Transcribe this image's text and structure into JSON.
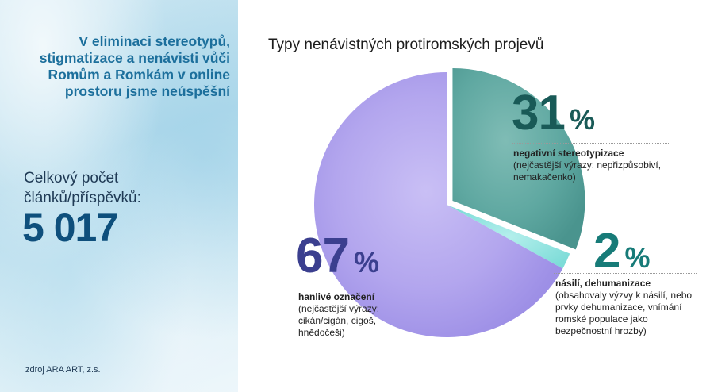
{
  "sidebar": {
    "headline": "V eliminaci stereotypů, stigmatizace a nenávisti vůči Romům a Romkám v online prostoru jsme neúspěšní",
    "count_label": "Celkový počet článků/příspěvků:",
    "count_value": "5 017",
    "source": "zdroj ARA ART, z.s."
  },
  "colors": {
    "sidebar_background": "#b6dcec",
    "headline": "#1c6f9c",
    "count_value": "#0e4f7c",
    "hanlive": "#b3a6ee",
    "negativni": "#5fa8a1",
    "nasili": "#8fe3e0"
  },
  "chart_data": {
    "type": "pie",
    "title": "Typy nenávistných protiromských projevů",
    "slices": [
      {
        "key": "negativni",
        "value": 31,
        "value_text": "31",
        "unit": "%",
        "label": "negativní stereotypizace",
        "detail": "(nejčastější výrazy: nepřizpůsobiví, nemakačenko)",
        "color": "#5fa8a1",
        "exploded": true
      },
      {
        "key": "nasili",
        "value": 2,
        "value_text": "2",
        "unit": "%",
        "label": "násilí, dehumanizace",
        "detail": "(obsahovaly výzvy k násilí, nebo prvky dehumanizace, vnímání romské populace jako bezpečnostní hrozby)",
        "color": "#8fe3e0",
        "exploded": false
      },
      {
        "key": "hanlive",
        "value": 67,
        "value_text": "67",
        "unit": "%",
        "label": "hanlivé označení",
        "detail": "(nejčastější výrazy: cikán/cigán, cigoš, hnědočeši)",
        "color": "#b3a6ee",
        "exploded": false
      }
    ]
  }
}
